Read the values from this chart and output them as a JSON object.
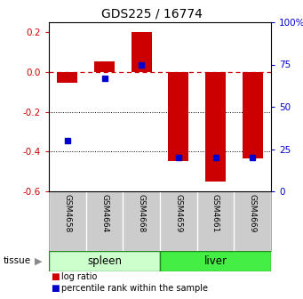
{
  "title": "GDS225 / 16774",
  "samples": [
    "GSM4658",
    "GSM4664",
    "GSM4668",
    "GSM4659",
    "GSM4661",
    "GSM4669"
  ],
  "log_ratios": [
    -0.055,
    0.055,
    0.2,
    -0.45,
    -0.55,
    -0.435
  ],
  "percentile_ranks": [
    30,
    67,
    75,
    20,
    20,
    20
  ],
  "tissue_groups": [
    {
      "label": "spleen",
      "start": 0,
      "end": 3,
      "color": "#ccffcc"
    },
    {
      "label": "liver",
      "start": 3,
      "end": 6,
      "color": "#44ee44"
    }
  ],
  "ylim": [
    -0.6,
    0.25
  ],
  "yticks": [
    0.2,
    0.0,
    -0.2,
    -0.4,
    -0.6
  ],
  "right_yticks": [
    100,
    75,
    50,
    25,
    0
  ],
  "bar_color": "#cc0000",
  "percentile_color": "#0000cc",
  "zero_line_color": "#cc0000",
  "grid_color": "#000000",
  "bg_color": "#ffffff",
  "bar_width": 0.55
}
